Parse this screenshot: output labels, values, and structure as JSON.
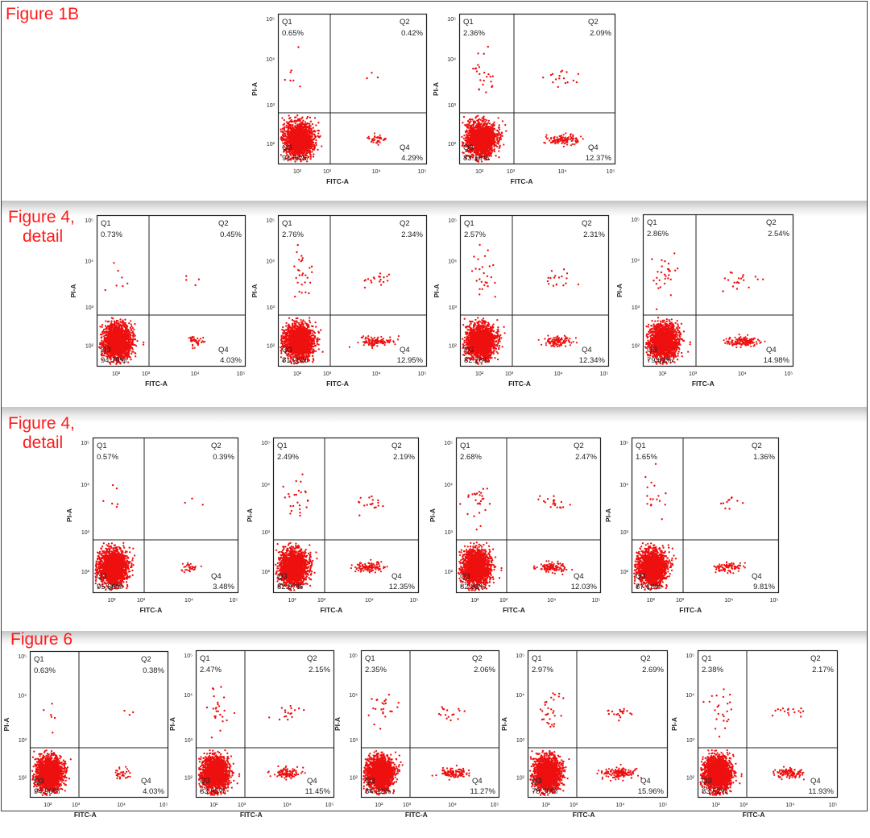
{
  "panel_labels": [
    {
      "lines": [
        "Figure 1B"
      ]
    },
    {
      "lines": [
        "Figure 4,",
        "detail"
      ]
    },
    {
      "lines": [
        "Figure 4,",
        "detail"
      ]
    },
    {
      "lines": [
        "Figure 6"
      ]
    }
  ],
  "axis_labels": {
    "x": "FITC-A",
    "y": "PI-A"
  },
  "quadrant_names": [
    "Q1",
    "Q2",
    "Q3",
    "Q4"
  ],
  "colors": {
    "events": "#ee1010",
    "frame": "#222222",
    "label": "#ff1a1a"
  },
  "chart_data": [
    {
      "type": "scatter",
      "row": 1,
      "x_ticks": [
        "10²",
        "10³",
        "10⁴",
        "10⁵"
      ],
      "y_ticks": [
        "10²",
        "10³",
        "10⁴",
        "10⁵"
      ],
      "quadrants": {
        "Q1": "0.65%",
        "Q2": "0.42%",
        "Q3": "94.64%",
        "Q4": "4.29%"
      }
    },
    {
      "type": "scatter",
      "row": 1,
      "x_ticks": [
        "10²",
        "10³",
        "10⁴",
        "10⁵"
      ],
      "y_ticks": [
        "10²",
        "10³",
        "10⁴",
        "10⁵"
      ],
      "quadrants": {
        "Q1": "2.36%",
        "Q2": "2.09%",
        "Q3": "83.18%",
        "Q4": "12.37%"
      }
    },
    {
      "type": "scatter",
      "row": 2,
      "x_ticks": [
        "10²",
        "10³",
        "10⁴",
        "10⁵"
      ],
      "y_ticks": [
        "10²",
        "10³",
        "10⁴",
        "10⁵"
      ],
      "quadrants": {
        "Q1": "0.73%",
        "Q2": "0.45%",
        "Q3": "94.79%",
        "Q4": "4.03%"
      }
    },
    {
      "type": "scatter",
      "row": 2,
      "x_ticks": [
        "10²",
        "10³",
        "10⁴",
        "10⁵"
      ],
      "y_ticks": [
        "10²",
        "10³",
        "10⁴",
        "10⁵"
      ],
      "quadrants": {
        "Q1": "2.76%",
        "Q2": "2.34%",
        "Q3": "81.95%",
        "Q4": "12.95%"
      }
    },
    {
      "type": "scatter",
      "row": 2,
      "x_ticks": [
        "10²",
        "10³",
        "10⁴",
        "10⁵"
      ],
      "y_ticks": [
        "10²",
        "10³",
        "10⁴",
        "10⁵"
      ],
      "quadrants": {
        "Q1": "2.57%",
        "Q2": "2.31%",
        "Q3": "82.78%",
        "Q4": "12.34%"
      }
    },
    {
      "type": "scatter",
      "row": 2,
      "x_ticks": [
        "10²",
        "10³",
        "10⁴",
        "10⁵"
      ],
      "y_ticks": [
        "10²",
        "10³",
        "10⁴",
        "10⁵"
      ],
      "quadrants": {
        "Q1": "2.86%",
        "Q2": "2.54%",
        "Q3": "79.62%",
        "Q4": "14.98%"
      }
    },
    {
      "type": "scatter",
      "row": 3,
      "x_ticks": [
        "10²",
        "10³",
        "10⁴",
        "10⁵"
      ],
      "y_ticks": [
        "10²",
        "10³",
        "10⁴",
        "10⁵"
      ],
      "quadrants": {
        "Q1": "0.57%",
        "Q2": "0.39%",
        "Q3": "95.56%",
        "Q4": "3.48%"
      }
    },
    {
      "type": "scatter",
      "row": 3,
      "x_ticks": [
        "10²",
        "10³",
        "10⁴",
        "10⁵"
      ],
      "y_ticks": [
        "10²",
        "10³",
        "10⁴",
        "10⁵"
      ],
      "quadrants": {
        "Q1": "2.49%",
        "Q2": "2.19%",
        "Q3": "82.97%",
        "Q4": "12.35%"
      }
    },
    {
      "type": "scatter",
      "row": 3,
      "x_ticks": [
        "10²",
        "10³",
        "10⁴",
        "10⁵"
      ],
      "y_ticks": [
        "10²",
        "10³",
        "10⁴",
        "10⁵"
      ],
      "quadrants": {
        "Q1": "2.68%",
        "Q2": "2.47%",
        "Q3": "82.83%",
        "Q4": "12.03%"
      }
    },
    {
      "type": "scatter",
      "row": 3,
      "x_ticks": [
        "10²",
        "10³",
        "10⁴",
        "10⁵"
      ],
      "y_ticks": [
        "10²",
        "10³",
        "10⁴",
        "10⁵"
      ],
      "quadrants": {
        "Q1": "1.65%",
        "Q2": "1.36%",
        "Q3": "87.18%",
        "Q4": "9.81%"
      }
    },
    {
      "type": "scatter",
      "row": 4,
      "x_ticks": [
        "10²",
        "10³",
        "10⁴",
        "10⁵"
      ],
      "y_ticks": [
        "10²",
        "10³",
        "10⁴",
        "10⁵"
      ],
      "quadrants": {
        "Q1": "0.63%",
        "Q2": "0.38%",
        "Q3": "94.98%",
        "Q4": "4.03%"
      }
    },
    {
      "type": "scatter",
      "row": 4,
      "x_ticks": [
        "10²",
        "10³",
        "10⁴",
        "10⁵"
      ],
      "y_ticks": [
        "10²",
        "10³",
        "10⁴",
        "10⁵"
      ],
      "quadrants": {
        "Q1": "2.47%",
        "Q2": "2.15%",
        "Q3": "83.93%",
        "Q4": "11.45%"
      }
    },
    {
      "type": "scatter",
      "row": 4,
      "x_ticks": [
        "10²",
        "10³",
        "10⁴",
        "10⁵"
      ],
      "y_ticks": [
        "10²",
        "10³",
        "10⁴",
        "10⁵"
      ],
      "quadrants": {
        "Q1": "2.35%",
        "Q2": "2.06%",
        "Q3": "84.32%",
        "Q4": "11.27%"
      }
    },
    {
      "type": "scatter",
      "row": 4,
      "x_ticks": [
        "10²",
        "10³",
        "10⁴",
        "10⁵"
      ],
      "y_ticks": [
        "10²",
        "10³",
        "10⁴",
        "10⁵"
      ],
      "quadrants": {
        "Q1": "2.97%",
        "Q2": "2.69%",
        "Q3": "78.38%",
        "Q4": "15.96%"
      }
    },
    {
      "type": "scatter",
      "row": 4,
      "x_ticks": [
        "10²",
        "10³",
        "10⁴",
        "10⁵"
      ],
      "y_ticks": [
        "10²",
        "10³",
        "10⁴",
        "10⁵"
      ],
      "quadrants": {
        "Q1": "2.38%",
        "Q2": "2.17%",
        "Q3": "83.52%",
        "Q4": "11.93%"
      }
    }
  ]
}
